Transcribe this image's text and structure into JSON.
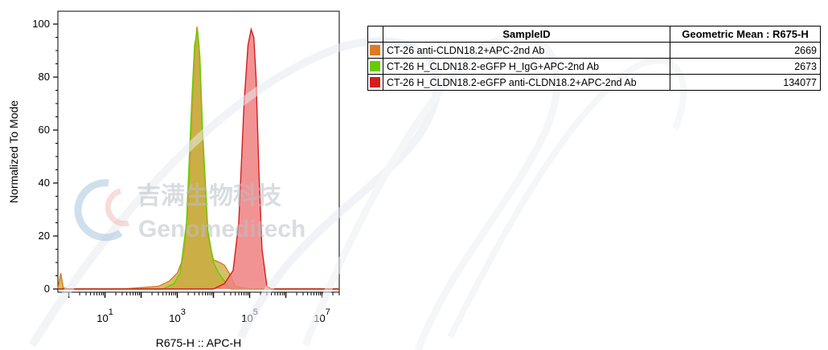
{
  "chart_data": {
    "type": "area",
    "xlabel": "R675-H :: APC-H",
    "ylabel": "Normalized To Mode",
    "x_scale": "log",
    "xlim": [
      0.5,
      30000000
    ],
    "ylim": [
      0,
      100
    ],
    "y_ticks": [
      "0",
      "20",
      "40",
      "60",
      "80",
      "100"
    ],
    "x_ticks": [
      {
        "value": 10,
        "base": "10",
        "exp": "1"
      },
      {
        "value": 1000,
        "base": "10",
        "exp": "3"
      },
      {
        "value": 100000,
        "base": "10",
        "exp": "5"
      },
      {
        "value": 10000000,
        "base": "10",
        "exp": "7"
      }
    ],
    "series": [
      {
        "name": "CT-26 anti-CLDN18.2+APC-2nd Ab",
        "color": "#E07A1F",
        "fill": "#C7A93A",
        "x": [
          0.5,
          0.6,
          0.7,
          1,
          2,
          5,
          30,
          300,
          600,
          1000,
          1500,
          2000,
          2500,
          3000,
          3500,
          4000,
          5000,
          7000,
          10000,
          15000,
          20000,
          30000,
          40000,
          100000,
          1000000,
          10000000,
          30000000
        ],
        "y": [
          0,
          6,
          0.5,
          0,
          0,
          0,
          0,
          1,
          3,
          6,
          12,
          30,
          60,
          88,
          99,
          92,
          55,
          20,
          11,
          10,
          9,
          5,
          1,
          0,
          0,
          0,
          0
        ]
      },
      {
        "name": "CT-26 H_CLDN18.2-eGFP H_IgG+APC-2nd Ab",
        "color": "#66CC00",
        "fill": "#C7A93A",
        "x": [
          0.5,
          1,
          100,
          400,
          800,
          1200,
          1800,
          2500,
          3000,
          3600,
          4200,
          5000,
          7000,
          10000,
          14000,
          20000,
          30000,
          100000,
          30000000
        ],
        "y": [
          0,
          0,
          0,
          0,
          2,
          6,
          25,
          70,
          92,
          98,
          88,
          60,
          22,
          10,
          6,
          3,
          0,
          0,
          0
        ]
      },
      {
        "name": "CT-26 H_CLDN18.2-eGFP anti-CLDN18.2+APC-2nd Ab",
        "color": "#D81C1C",
        "fill": "#F08080",
        "x": [
          0.5,
          10000,
          20000,
          35000,
          50000,
          70000,
          90000,
          110000,
          130000,
          150000,
          180000,
          220000,
          300000,
          400000,
          30000000
        ],
        "y": [
          0,
          0,
          2,
          7,
          25,
          70,
          92,
          98,
          95,
          80,
          45,
          15,
          1,
          0,
          0
        ]
      }
    ]
  },
  "table": {
    "headers": [
      "SampleID",
      "Geometric Mean : R675-H"
    ],
    "rows": [
      {
        "color": "#E07A1F",
        "sample": "CT-26 anti-CLDN18.2+APC-2nd Ab",
        "value": "2669"
      },
      {
        "color": "#66CC00",
        "sample": "CT-26 H_CLDN18.2-eGFP H_IgG+APC-2nd Ab",
        "value": "2673"
      },
      {
        "color": "#D81C1C",
        "sample": "CT-26 H_CLDN18.2-eGFP anti-CLDN18.2+APC-2nd Ab",
        "value": "134077"
      }
    ]
  },
  "watermark": {
    "cn_text": "吉满生物科技",
    "en_text": "Genomeditech"
  }
}
